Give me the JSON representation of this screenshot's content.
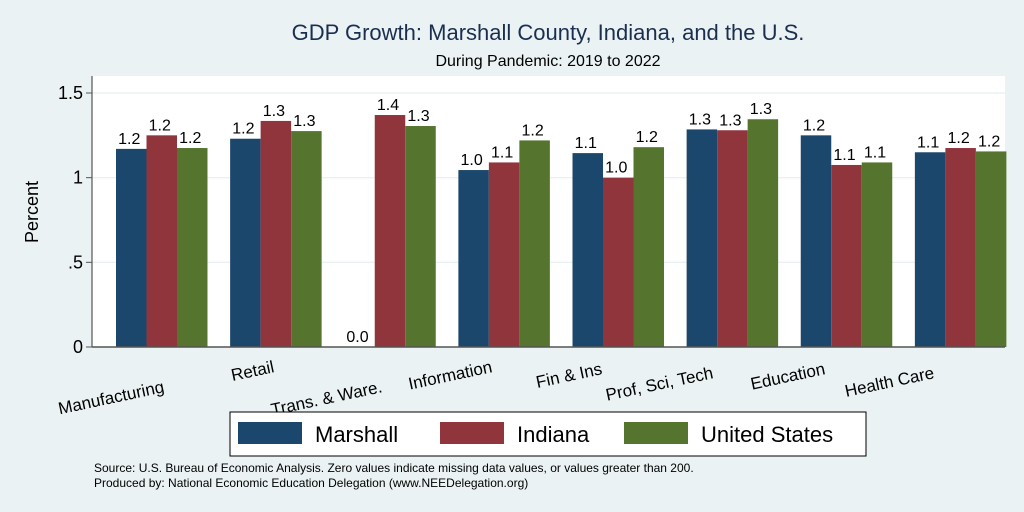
{
  "chart_data": {
    "type": "bar",
    "title": "GDP Growth: Marshall County, Indiana, and the U.S.",
    "subtitle": "During Pandemic: 2019 to 2022",
    "xlabel": "",
    "ylabel": "Percent",
    "ylim": [
      0,
      1.6
    ],
    "yticks": [
      0,
      0.5,
      1,
      1.5
    ],
    "ytick_labels": [
      "0",
      ".5",
      "1",
      "1.5"
    ],
    "grid": true,
    "legend_position": "bottom",
    "categories": [
      "Manufacturing",
      "Retail",
      "Trans. & Ware.",
      "Information",
      "Fin & Ins",
      "Prof, Sci, Tech",
      "Education",
      "Health Care"
    ],
    "series": [
      {
        "name": "Marshall",
        "color": "#1c476d",
        "values": [
          1.17,
          1.23,
          0.0,
          1.045,
          1.145,
          1.285,
          1.25,
          1.15
        ],
        "labels": [
          "1.2",
          "1.2",
          "0.0",
          "1.0",
          "1.1",
          "1.3",
          "1.2",
          "1.1"
        ]
      },
      {
        "name": "Indiana",
        "color": "#90353c",
        "values": [
          1.25,
          1.335,
          1.37,
          1.09,
          1.0,
          1.28,
          1.075,
          1.175
        ],
        "labels": [
          "1.2",
          "1.3",
          "1.4",
          "1.1",
          "1.0",
          "1.3",
          "1.1",
          "1.2"
        ]
      },
      {
        "name": "United States",
        "color": "#55752f",
        "values": [
          1.175,
          1.275,
          1.305,
          1.22,
          1.18,
          1.345,
          1.09,
          1.155
        ],
        "labels": [
          "1.2",
          "1.3",
          "1.3",
          "1.2",
          "1.2",
          "1.3",
          "1.1",
          "1.2"
        ]
      }
    ],
    "notes": [
      "Source: U.S. Bureau of Economic Analysis. Zero values indicate missing data values, or values greater than 200.",
      "Produced by: National Economic Education Delegation (www.NEEDelegation.org)"
    ]
  }
}
